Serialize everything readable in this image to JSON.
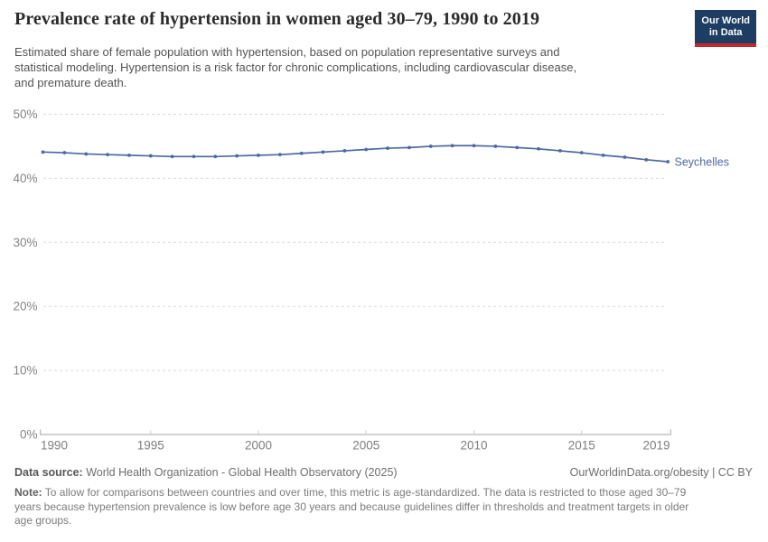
{
  "header": {
    "title": "Prevalence rate of hypertension in women aged 30–79, 1990 to 2019",
    "subtitle_lines": [
      "Estimated share of female population with hypertension, based on population representative surveys and",
      "statistical modeling. Hypertension is a risk factor for chronic complications, including cardiovascular disease,",
      "and premature death."
    ],
    "logo": {
      "line1": "Our World",
      "line2": "in Data"
    }
  },
  "chart_data": {
    "type": "line",
    "title": "Prevalence rate of hypertension in women aged 30–79, 1990 to 2019",
    "xlabel": "",
    "ylabel": "",
    "x_ticks": [
      1990,
      1995,
      2000,
      2005,
      2010,
      2015,
      2019
    ],
    "y_ticks": [
      0,
      10,
      20,
      30,
      40,
      50
    ],
    "y_suffix": "%",
    "xlim": [
      1990,
      2019
    ],
    "ylim": [
      0,
      50
    ],
    "grid": "horizontal-dashed",
    "legend": "end-of-line-label",
    "series": [
      {
        "name": "Seychelles",
        "color": "#4d69a2",
        "x": [
          1990,
          1991,
          1992,
          1993,
          1994,
          1995,
          1996,
          1997,
          1998,
          1999,
          2000,
          2001,
          2002,
          2003,
          2004,
          2005,
          2006,
          2007,
          2008,
          2009,
          2010,
          2011,
          2012,
          2013,
          2014,
          2015,
          2016,
          2017,
          2018,
          2019
        ],
        "values": [
          44.1,
          44.0,
          43.8,
          43.7,
          43.6,
          43.5,
          43.4,
          43.4,
          43.4,
          43.5,
          43.6,
          43.7,
          43.9,
          44.1,
          44.3,
          44.5,
          44.7,
          44.8,
          45.0,
          45.1,
          45.1,
          45.0,
          44.8,
          44.6,
          44.3,
          44.0,
          43.6,
          43.3,
          42.9,
          42.6
        ]
      }
    ],
    "colors": {
      "axis": "#a5a5a5",
      "grid": "#dadada",
      "tick_label": "#7f7f7f"
    }
  },
  "footer": {
    "source_label": "Data source:",
    "source_text": " World Health Organization - Global Health Observatory (2025)",
    "rights": "OurWorldinData.org/obesity | CC BY",
    "note_label": "Note:",
    "note_line1_rest": " To allow for comparisons between countries and over time, this metric is age-standardized. The data is restricted to those aged 30–79",
    "note_line2": "years because hypertension prevalence is low before age 30 years and because guidelines differ in thresholds and treatment targets in older",
    "note_line3": "age groups."
  }
}
